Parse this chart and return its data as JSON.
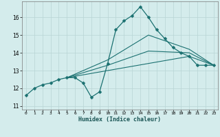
{
  "xlabel": "Humidex (Indice chaleur)",
  "bg_color": "#d4ecec",
  "grid_color": "#b8d4d4",
  "line_color": "#1a7070",
  "xlim": [
    -0.5,
    23.5
  ],
  "ylim": [
    10.8,
    16.9
  ],
  "xticks": [
    0,
    1,
    2,
    3,
    4,
    5,
    6,
    7,
    8,
    9,
    10,
    11,
    12,
    13,
    14,
    15,
    16,
    17,
    18,
    19,
    20,
    21,
    22,
    23
  ],
  "yticks": [
    11,
    12,
    13,
    14,
    15,
    16
  ],
  "series_main": {
    "x": [
      0,
      1,
      2,
      3,
      4,
      5,
      6,
      7,
      8,
      9,
      10,
      11,
      12,
      13,
      14,
      15,
      16,
      17,
      18,
      19,
      20,
      21,
      22,
      23
    ],
    "y": [
      11.6,
      12.0,
      12.2,
      12.3,
      12.5,
      12.6,
      12.6,
      12.3,
      11.5,
      11.8,
      13.4,
      15.3,
      15.8,
      16.1,
      16.6,
      16.0,
      15.3,
      14.8,
      14.3,
      14.0,
      13.8,
      13.3,
      13.3,
      13.3
    ]
  },
  "series_smooth": [
    {
      "x": [
        5,
        10,
        15,
        20,
        23
      ],
      "y": [
        12.6,
        13.0,
        13.4,
        13.8,
        13.3
      ]
    },
    {
      "x": [
        5,
        10,
        15,
        20,
        23
      ],
      "y": [
        12.6,
        13.3,
        14.1,
        14.0,
        13.3
      ]
    },
    {
      "x": [
        5,
        10,
        15,
        20,
        23
      ],
      "y": [
        12.6,
        13.6,
        15.0,
        14.2,
        13.3
      ]
    }
  ]
}
